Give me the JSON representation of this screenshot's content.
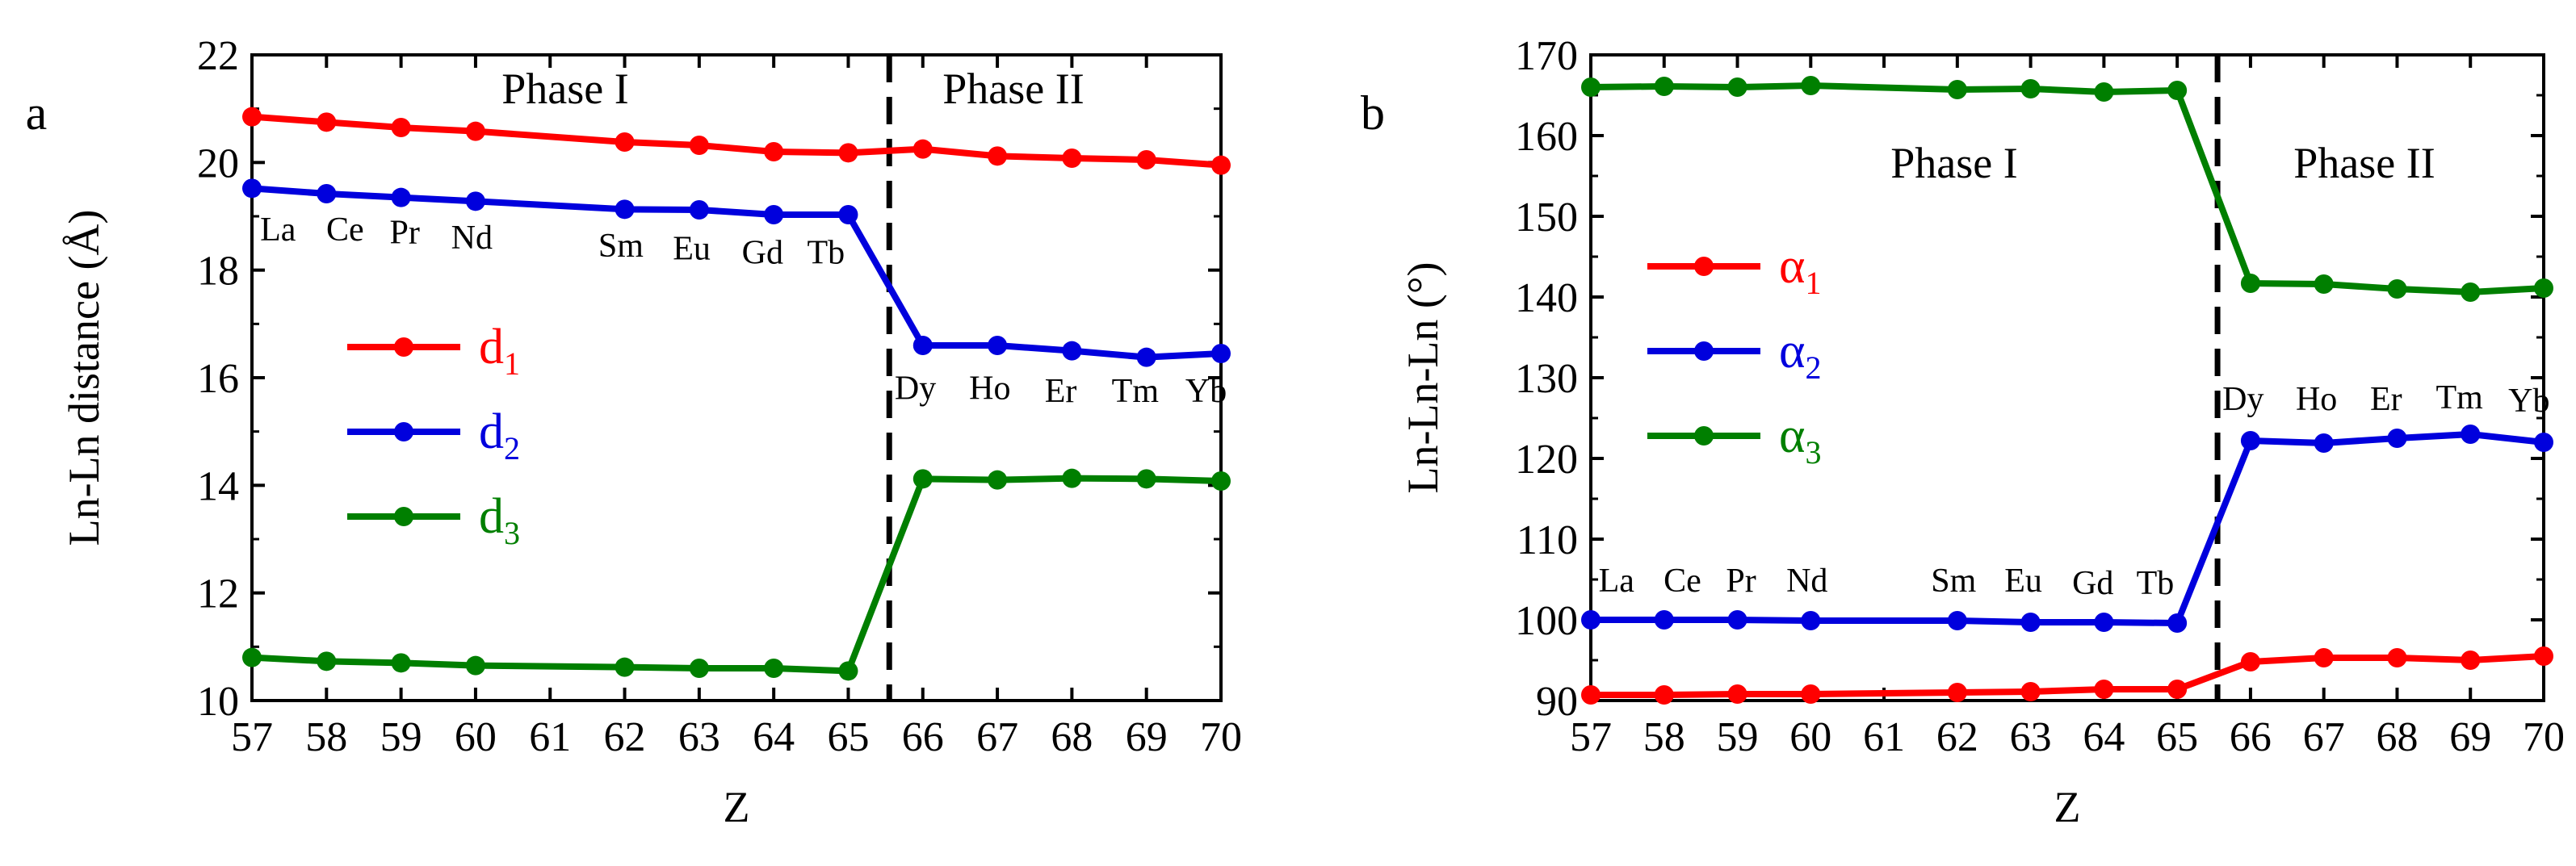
{
  "figure": {
    "colors": {
      "red": "#ff0000",
      "blue": "#0000dd",
      "green": "#007f00",
      "axis": "#000000"
    }
  },
  "chart_data": [
    {
      "type": "line",
      "panel_label": "a",
      "xlabel": "Z",
      "ylabel": "Ln-Ln distance (Å)",
      "xlim": [
        57,
        70
      ],
      "ylim": [
        10,
        22
      ],
      "xticks": [
        "57",
        "58",
        "59",
        "60",
        "61",
        "62",
        "63",
        "64",
        "65",
        "66",
        "67",
        "68",
        "69",
        "70"
      ],
      "yticks": [
        "10",
        "12",
        "14",
        "16",
        "18",
        "20",
        "22"
      ],
      "x": [
        57,
        58,
        59,
        60,
        62,
        63,
        64,
        65,
        66,
        67,
        68,
        69,
        70
      ],
      "series": [
        {
          "key": "d1",
          "name": "d",
          "sub": "1",
          "color": "#ff0000",
          "values": [
            20.85,
            20.75,
            20.65,
            20.58,
            20.38,
            20.32,
            20.2,
            20.18,
            20.25,
            20.12,
            20.08,
            20.05,
            19.95
          ]
        },
        {
          "key": "d2",
          "name": "d",
          "sub": "2",
          "color": "#0000dd",
          "values": [
            19.52,
            19.42,
            19.35,
            19.28,
            19.13,
            19.12,
            19.03,
            19.03,
            16.6,
            16.6,
            16.5,
            16.38,
            16.45
          ]
        },
        {
          "key": "d3",
          "name": "d",
          "sub": "3",
          "color": "#007f00",
          "values": [
            10.8,
            10.73,
            10.7,
            10.65,
            10.62,
            10.6,
            10.6,
            10.55,
            14.12,
            14.1,
            14.13,
            14.12,
            14.08
          ]
        }
      ],
      "divider_x": 65.55,
      "phase_labels": [
        "Phase I",
        "Phase II"
      ],
      "element_labels": [
        {
          "text": "La",
          "x": 57.35,
          "y": 18.55
        },
        {
          "text": "Ce",
          "x": 58.25,
          "y": 18.55
        },
        {
          "text": "Pr",
          "x": 59.05,
          "y": 18.5
        },
        {
          "text": "Nd",
          "x": 59.95,
          "y": 18.4
        },
        {
          "text": "Sm",
          "x": 61.95,
          "y": 18.25
        },
        {
          "text": "Eu",
          "x": 62.9,
          "y": 18.2
        },
        {
          "text": "Gd",
          "x": 63.85,
          "y": 18.12
        },
        {
          "text": "Tb",
          "x": 64.7,
          "y": 18.12
        },
        {
          "text": "Dy",
          "x": 65.9,
          "y": 15.6
        },
        {
          "text": "Ho",
          "x": 66.9,
          "y": 15.6
        },
        {
          "text": "Er",
          "x": 67.85,
          "y": 15.55
        },
        {
          "text": "Tm",
          "x": 68.85,
          "y": 15.55
        },
        {
          "text": "Yb",
          "x": 69.8,
          "y": 15.55
        }
      ],
      "legend": [
        {
          "name": "d",
          "sub": "1",
          "color": "#ff0000"
        },
        {
          "name": "d",
          "sub": "2",
          "color": "#0000dd"
        },
        {
          "name": "d",
          "sub": "3",
          "color": "#007f00"
        }
      ]
    },
    {
      "type": "line",
      "panel_label": "b",
      "xlabel": "Z",
      "ylabel": "Ln-Ln-Ln (°)",
      "xlim": [
        57,
        70
      ],
      "ylim": [
        90,
        170
      ],
      "xticks": [
        "57",
        "58",
        "59",
        "60",
        "61",
        "62",
        "63",
        "64",
        "65",
        "66",
        "67",
        "68",
        "69",
        "70"
      ],
      "yticks": [
        "90",
        "100",
        "110",
        "120",
        "130",
        "140",
        "150",
        "160",
        "170"
      ],
      "x": [
        57,
        58,
        59,
        60,
        62,
        63,
        64,
        65,
        66,
        67,
        68,
        69,
        70
      ],
      "series": [
        {
          "key": "a1",
          "name": "α",
          "sub": "1",
          "color": "#ff0000",
          "values": [
            90.7,
            90.7,
            90.8,
            90.8,
            91.0,
            91.1,
            91.4,
            91.4,
            94.8,
            95.3,
            95.3,
            95.0,
            95.5
          ]
        },
        {
          "key": "a2",
          "name": "α",
          "sub": "2",
          "color": "#0000dd",
          "values": [
            100.0,
            100.0,
            100.0,
            99.9,
            99.9,
            99.7,
            99.7,
            99.6,
            122.2,
            121.9,
            122.5,
            123.0,
            122.0
          ]
        },
        {
          "key": "a3",
          "name": "α",
          "sub": "3",
          "color": "#007f00",
          "values": [
            166.0,
            166.1,
            166.0,
            166.2,
            165.7,
            165.8,
            165.4,
            165.6,
            141.7,
            141.6,
            141.0,
            140.6,
            141.1
          ]
        }
      ],
      "divider_x": 65.55,
      "phase_labels": [
        "Phase I",
        "Phase II"
      ],
      "element_labels": [
        {
          "text": "La",
          "x": 57.35,
          "y": 103.5
        },
        {
          "text": "Ce",
          "x": 58.25,
          "y": 103.5
        },
        {
          "text": "Pr",
          "x": 59.05,
          "y": 103.5
        },
        {
          "text": "Nd",
          "x": 59.95,
          "y": 103.5
        },
        {
          "text": "Sm",
          "x": 61.95,
          "y": 103.5
        },
        {
          "text": "Eu",
          "x": 62.9,
          "y": 103.5
        },
        {
          "text": "Gd",
          "x": 63.85,
          "y": 103.2
        },
        {
          "text": "Tb",
          "x": 64.7,
          "y": 103.2
        },
        {
          "text": "Dy",
          "x": 65.9,
          "y": 126.0
        },
        {
          "text": "Ho",
          "x": 66.9,
          "y": 126.0
        },
        {
          "text": "Er",
          "x": 67.85,
          "y": 126.0
        },
        {
          "text": "Tm",
          "x": 68.85,
          "y": 126.2
        },
        {
          "text": "Yb",
          "x": 69.8,
          "y": 125.8
        }
      ],
      "legend": [
        {
          "name": "α",
          "sub": "1",
          "color": "#ff0000"
        },
        {
          "name": "α",
          "sub": "2",
          "color": "#0000dd"
        },
        {
          "name": "α",
          "sub": "3",
          "color": "#007f00"
        }
      ]
    }
  ]
}
